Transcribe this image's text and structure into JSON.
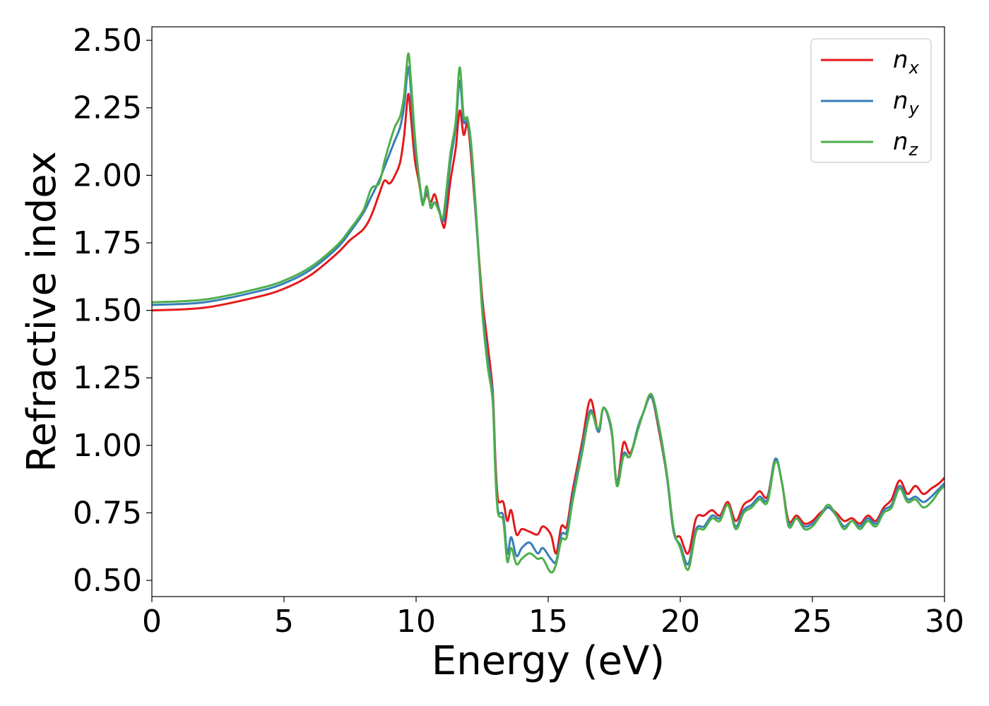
{
  "chart_data": {
    "type": "line",
    "xlabel": "Energy (eV)",
    "ylabel": "Refractive index",
    "xlim": [
      0,
      30
    ],
    "ylim": [
      0.44,
      2.55
    ],
    "x_ticks": [
      0,
      5,
      10,
      15,
      20,
      25,
      30
    ],
    "y_ticks": [
      0.5,
      0.75,
      1.0,
      1.25,
      1.5,
      1.75,
      2.0,
      2.25,
      2.5
    ],
    "x_tick_labels": [
      "0",
      "5",
      "10",
      "15",
      "20",
      "25",
      "30"
    ],
    "y_tick_labels": [
      "0.50",
      "0.75",
      "1.00",
      "1.25",
      "1.50",
      "1.75",
      "2.00",
      "2.25",
      "2.50"
    ],
    "grid": false,
    "legend_position": "top-right",
    "series": [
      {
        "name": "n_x",
        "label_base": "n",
        "label_sub": "x",
        "color": "#e41a1c",
        "points": [
          [
            0,
            1.5
          ],
          [
            2,
            1.51
          ],
          [
            4,
            1.55
          ],
          [
            5,
            1.58
          ],
          [
            6,
            1.63
          ],
          [
            7,
            1.71
          ],
          [
            7.5,
            1.76
          ],
          [
            8,
            1.8
          ],
          [
            8.3,
            1.85
          ],
          [
            8.6,
            1.93
          ],
          [
            8.8,
            1.98
          ],
          [
            9.0,
            1.97
          ],
          [
            9.2,
            2.0
          ],
          [
            9.4,
            2.05
          ],
          [
            9.55,
            2.15
          ],
          [
            9.7,
            2.3
          ],
          [
            9.8,
            2.22
          ],
          [
            9.95,
            2.06
          ],
          [
            10.1,
            1.98
          ],
          [
            10.25,
            1.9
          ],
          [
            10.4,
            1.93
          ],
          [
            10.55,
            1.9
          ],
          [
            10.7,
            1.93
          ],
          [
            10.85,
            1.88
          ],
          [
            11.0,
            1.82
          ],
          [
            11.1,
            1.82
          ],
          [
            11.3,
            1.98
          ],
          [
            11.5,
            2.1
          ],
          [
            11.65,
            2.24
          ],
          [
            11.8,
            2.15
          ],
          [
            11.95,
            2.19
          ],
          [
            12.1,
            2.05
          ],
          [
            12.3,
            1.8
          ],
          [
            12.5,
            1.55
          ],
          [
            12.7,
            1.38
          ],
          [
            12.9,
            1.2
          ],
          [
            13.0,
            0.95
          ],
          [
            13.1,
            0.8
          ],
          [
            13.3,
            0.79
          ],
          [
            13.45,
            0.72
          ],
          [
            13.6,
            0.76
          ],
          [
            13.8,
            0.67
          ],
          [
            14.0,
            0.69
          ],
          [
            14.3,
            0.68
          ],
          [
            14.6,
            0.67
          ],
          [
            14.8,
            0.7
          ],
          [
            15.1,
            0.67
          ],
          [
            15.3,
            0.6
          ],
          [
            15.5,
            0.7
          ],
          [
            15.7,
            0.7
          ],
          [
            15.9,
            0.82
          ],
          [
            16.1,
            0.92
          ],
          [
            16.3,
            1.02
          ],
          [
            16.6,
            1.17
          ],
          [
            16.9,
            1.05
          ],
          [
            17.1,
            1.14
          ],
          [
            17.4,
            1.05
          ],
          [
            17.6,
            0.86
          ],
          [
            17.85,
            1.01
          ],
          [
            18.1,
            0.97
          ],
          [
            18.4,
            1.06
          ],
          [
            18.6,
            1.12
          ],
          [
            18.9,
            1.18
          ],
          [
            19.2,
            1.05
          ],
          [
            19.5,
            0.88
          ],
          [
            19.75,
            0.68
          ],
          [
            20.0,
            0.66
          ],
          [
            20.3,
            0.6
          ],
          [
            20.6,
            0.73
          ],
          [
            20.9,
            0.74
          ],
          [
            21.2,
            0.76
          ],
          [
            21.5,
            0.74
          ],
          [
            21.8,
            0.79
          ],
          [
            22.1,
            0.72
          ],
          [
            22.4,
            0.78
          ],
          [
            22.7,
            0.8
          ],
          [
            23.0,
            0.83
          ],
          [
            23.3,
            0.81
          ],
          [
            23.6,
            0.95
          ],
          [
            23.85,
            0.86
          ],
          [
            24.1,
            0.72
          ],
          [
            24.4,
            0.74
          ],
          [
            24.7,
            0.71
          ],
          [
            25.0,
            0.72
          ],
          [
            25.3,
            0.75
          ],
          [
            25.6,
            0.77
          ],
          [
            25.9,
            0.75
          ],
          [
            26.2,
            0.72
          ],
          [
            26.5,
            0.73
          ],
          [
            26.8,
            0.71
          ],
          [
            27.1,
            0.74
          ],
          [
            27.4,
            0.72
          ],
          [
            27.7,
            0.77
          ],
          [
            28.0,
            0.8
          ],
          [
            28.3,
            0.87
          ],
          [
            28.6,
            0.82
          ],
          [
            28.9,
            0.85
          ],
          [
            29.2,
            0.82
          ],
          [
            29.5,
            0.84
          ],
          [
            29.8,
            0.86
          ],
          [
            30,
            0.88
          ]
        ]
      },
      {
        "name": "n_y",
        "label_base": "n",
        "label_sub": "y",
        "color": "#377eb8",
        "points": [
          [
            0,
            1.52
          ],
          [
            2,
            1.53
          ],
          [
            4,
            1.57
          ],
          [
            5,
            1.6
          ],
          [
            6,
            1.65
          ],
          [
            7,
            1.73
          ],
          [
            7.5,
            1.79
          ],
          [
            8,
            1.86
          ],
          [
            8.3,
            1.92
          ],
          [
            8.6,
            1.98
          ],
          [
            8.8,
            2.03
          ],
          [
            9.0,
            2.08
          ],
          [
            9.2,
            2.13
          ],
          [
            9.4,
            2.18
          ],
          [
            9.55,
            2.26
          ],
          [
            9.7,
            2.4
          ],
          [
            9.8,
            2.32
          ],
          [
            9.95,
            2.12
          ],
          [
            10.1,
            2.0
          ],
          [
            10.25,
            1.9
          ],
          [
            10.4,
            1.94
          ],
          [
            10.55,
            1.89
          ],
          [
            10.7,
            1.9
          ],
          [
            10.85,
            1.88
          ],
          [
            11.0,
            1.83
          ],
          [
            11.1,
            1.87
          ],
          [
            11.3,
            2.05
          ],
          [
            11.5,
            2.18
          ],
          [
            11.65,
            2.35
          ],
          [
            11.8,
            2.2
          ],
          [
            11.95,
            2.2
          ],
          [
            12.1,
            2.08
          ],
          [
            12.3,
            1.8
          ],
          [
            12.5,
            1.52
          ],
          [
            12.7,
            1.33
          ],
          [
            12.9,
            1.18
          ],
          [
            13.0,
            0.92
          ],
          [
            13.1,
            0.76
          ],
          [
            13.3,
            0.74
          ],
          [
            13.45,
            0.6
          ],
          [
            13.6,
            0.66
          ],
          [
            13.8,
            0.59
          ],
          [
            14.0,
            0.62
          ],
          [
            14.3,
            0.64
          ],
          [
            14.6,
            0.6
          ],
          [
            14.8,
            0.62
          ],
          [
            15.1,
            0.58
          ],
          [
            15.3,
            0.57
          ],
          [
            15.5,
            0.67
          ],
          [
            15.7,
            0.68
          ],
          [
            15.9,
            0.8
          ],
          [
            16.1,
            0.9
          ],
          [
            16.3,
            1.0
          ],
          [
            16.6,
            1.13
          ],
          [
            16.9,
            1.05
          ],
          [
            17.1,
            1.14
          ],
          [
            17.4,
            1.05
          ],
          [
            17.6,
            0.86
          ],
          [
            17.85,
            0.97
          ],
          [
            18.1,
            0.96
          ],
          [
            18.4,
            1.07
          ],
          [
            18.6,
            1.12
          ],
          [
            18.9,
            1.18
          ],
          [
            19.2,
            1.06
          ],
          [
            19.5,
            0.88
          ],
          [
            19.75,
            0.68
          ],
          [
            20.0,
            0.63
          ],
          [
            20.3,
            0.56
          ],
          [
            20.6,
            0.69
          ],
          [
            20.9,
            0.7
          ],
          [
            21.2,
            0.74
          ],
          [
            21.5,
            0.73
          ],
          [
            21.8,
            0.78
          ],
          [
            22.1,
            0.7
          ],
          [
            22.4,
            0.76
          ],
          [
            22.7,
            0.78
          ],
          [
            23.0,
            0.81
          ],
          [
            23.3,
            0.8
          ],
          [
            23.6,
            0.95
          ],
          [
            23.85,
            0.86
          ],
          [
            24.1,
            0.71
          ],
          [
            24.4,
            0.73
          ],
          [
            24.7,
            0.7
          ],
          [
            25.0,
            0.71
          ],
          [
            25.3,
            0.74
          ],
          [
            25.6,
            0.77
          ],
          [
            25.9,
            0.74
          ],
          [
            26.2,
            0.7
          ],
          [
            26.5,
            0.72
          ],
          [
            26.8,
            0.7
          ],
          [
            27.1,
            0.73
          ],
          [
            27.4,
            0.71
          ],
          [
            27.7,
            0.76
          ],
          [
            28.0,
            0.78
          ],
          [
            28.3,
            0.85
          ],
          [
            28.6,
            0.8
          ],
          [
            28.9,
            0.81
          ],
          [
            29.2,
            0.79
          ],
          [
            29.5,
            0.81
          ],
          [
            29.8,
            0.84
          ],
          [
            30,
            0.86
          ]
        ]
      },
      {
        "name": "n_z",
        "label_base": "n",
        "label_sub": "z",
        "color": "#4daf4a",
        "points": [
          [
            0,
            1.53
          ],
          [
            2,
            1.54
          ],
          [
            4,
            1.58
          ],
          [
            5,
            1.61
          ],
          [
            6,
            1.66
          ],
          [
            7,
            1.74
          ],
          [
            7.5,
            1.8
          ],
          [
            8,
            1.87
          ],
          [
            8.3,
            1.95
          ],
          [
            8.6,
            1.97
          ],
          [
            8.8,
            2.05
          ],
          [
            9.0,
            2.12
          ],
          [
            9.2,
            2.18
          ],
          [
            9.4,
            2.22
          ],
          [
            9.55,
            2.3
          ],
          [
            9.7,
            2.45
          ],
          [
            9.8,
            2.36
          ],
          [
            9.95,
            2.15
          ],
          [
            10.1,
            2.0
          ],
          [
            10.25,
            1.89
          ],
          [
            10.4,
            1.96
          ],
          [
            10.55,
            1.88
          ],
          [
            10.7,
            1.9
          ],
          [
            10.85,
            1.87
          ],
          [
            11.0,
            1.84
          ],
          [
            11.1,
            1.9
          ],
          [
            11.3,
            2.08
          ],
          [
            11.5,
            2.2
          ],
          [
            11.65,
            2.4
          ],
          [
            11.8,
            2.22
          ],
          [
            11.95,
            2.21
          ],
          [
            12.1,
            2.1
          ],
          [
            12.3,
            1.82
          ],
          [
            12.5,
            1.5
          ],
          [
            12.7,
            1.3
          ],
          [
            12.9,
            1.16
          ],
          [
            13.0,
            0.9
          ],
          [
            13.1,
            0.75
          ],
          [
            13.3,
            0.72
          ],
          [
            13.45,
            0.57
          ],
          [
            13.6,
            0.62
          ],
          [
            13.8,
            0.56
          ],
          [
            14.0,
            0.58
          ],
          [
            14.3,
            0.6
          ],
          [
            14.6,
            0.58
          ],
          [
            14.8,
            0.58
          ],
          [
            15.1,
            0.53
          ],
          [
            15.3,
            0.56
          ],
          [
            15.5,
            0.65
          ],
          [
            15.7,
            0.66
          ],
          [
            15.9,
            0.78
          ],
          [
            16.1,
            0.88
          ],
          [
            16.3,
            0.98
          ],
          [
            16.6,
            1.12
          ],
          [
            16.9,
            1.06
          ],
          [
            17.1,
            1.14
          ],
          [
            17.4,
            1.06
          ],
          [
            17.6,
            0.85
          ],
          [
            17.85,
            0.96
          ],
          [
            18.1,
            0.96
          ],
          [
            18.4,
            1.06
          ],
          [
            18.6,
            1.12
          ],
          [
            18.9,
            1.19
          ],
          [
            19.2,
            1.07
          ],
          [
            19.5,
            0.89
          ],
          [
            19.75,
            0.69
          ],
          [
            20.0,
            0.62
          ],
          [
            20.3,
            0.54
          ],
          [
            20.6,
            0.68
          ],
          [
            20.9,
            0.69
          ],
          [
            21.2,
            0.73
          ],
          [
            21.5,
            0.72
          ],
          [
            21.8,
            0.78
          ],
          [
            22.1,
            0.69
          ],
          [
            22.4,
            0.75
          ],
          [
            22.7,
            0.77
          ],
          [
            23.0,
            0.8
          ],
          [
            23.3,
            0.79
          ],
          [
            23.6,
            0.94
          ],
          [
            23.85,
            0.86
          ],
          [
            24.1,
            0.7
          ],
          [
            24.4,
            0.73
          ],
          [
            24.7,
            0.69
          ],
          [
            25.0,
            0.7
          ],
          [
            25.3,
            0.74
          ],
          [
            25.6,
            0.78
          ],
          [
            25.9,
            0.74
          ],
          [
            26.2,
            0.69
          ],
          [
            26.5,
            0.72
          ],
          [
            26.8,
            0.69
          ],
          [
            27.1,
            0.72
          ],
          [
            27.4,
            0.7
          ],
          [
            27.7,
            0.75
          ],
          [
            28.0,
            0.77
          ],
          [
            28.3,
            0.84
          ],
          [
            28.6,
            0.79
          ],
          [
            28.9,
            0.8
          ],
          [
            29.2,
            0.77
          ],
          [
            29.5,
            0.79
          ],
          [
            29.8,
            0.83
          ],
          [
            30,
            0.85
          ]
        ]
      }
    ]
  }
}
